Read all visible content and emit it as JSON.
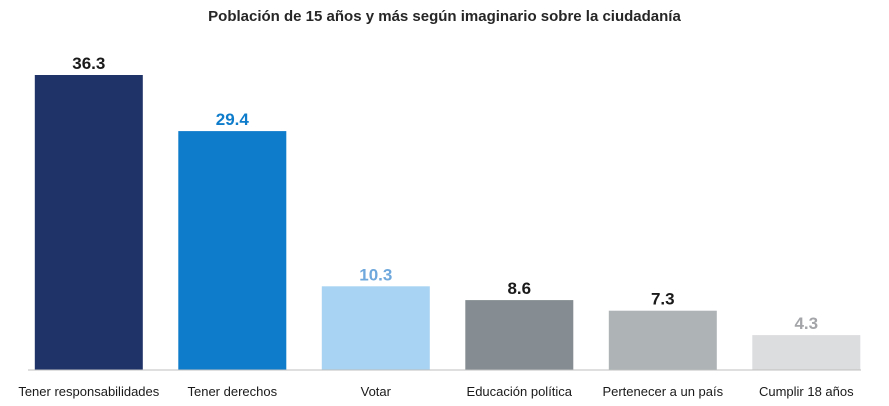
{
  "chart_data": {
    "type": "bar",
    "title": "Población de 15 años y más según imaginario sobre la ciudadanía",
    "categories": [
      "Tener responsabilidades",
      "Tener derechos",
      "Votar",
      "Educación política",
      "Pertenecer a un país",
      "Cumplir 18 años"
    ],
    "values": [
      36.3,
      29.4,
      10.3,
      8.6,
      7.3,
      4.3
    ],
    "value_labels": [
      "36.3",
      "29.4",
      "10.3",
      "8.6",
      "7.3",
      "4.3"
    ],
    "bar_colors": [
      "#1f3368",
      "#0e7ccb",
      "#a9d3f2",
      "#858d92",
      "#aeb3b6",
      "#dcdddf"
    ],
    "label_colors": [
      "#1a1a1a",
      "#0e7ccb",
      "#6fa8dc",
      "#1a1a1a",
      "#1a1a1a",
      "#a3a5a8"
    ],
    "xlabel": "",
    "ylabel": "",
    "ylim": [
      0,
      36.3
    ],
    "grid": false,
    "legend": "none"
  }
}
